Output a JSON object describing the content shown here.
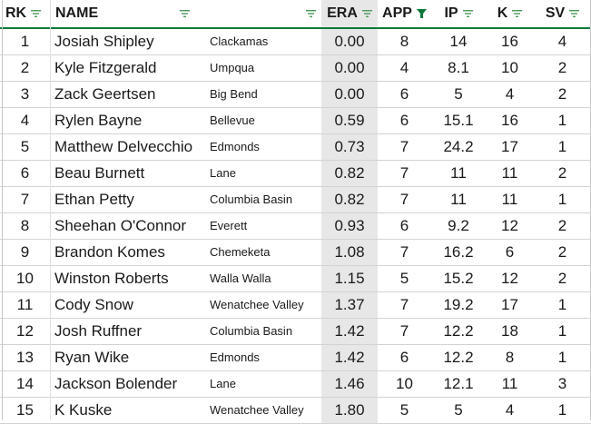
{
  "columns": [
    {
      "key": "rk",
      "label": "RK",
      "filter": "filter-icon"
    },
    {
      "key": "name",
      "label": "NAME",
      "filter": "filter-icon"
    },
    {
      "key": "team",
      "label": "",
      "filter": "filter-icon"
    },
    {
      "key": "era",
      "label": "ERA",
      "filter": "filter-icon"
    },
    {
      "key": "app",
      "label": "APP",
      "filter": "sort-funnel-icon"
    },
    {
      "key": "ip",
      "label": "IP",
      "filter": "filter-icon"
    },
    {
      "key": "k",
      "label": "K",
      "filter": "filter-icon"
    },
    {
      "key": "sv",
      "label": "SV",
      "filter": "filter-icon"
    }
  ],
  "colors": {
    "accent": "#0b7a3a",
    "icon": "#4a9a5a",
    "active_icon": "#0b7a3a",
    "era_bg": "#e7e7e7"
  },
  "rows": [
    {
      "rk": "1",
      "name": "Josiah Shipley",
      "team": "Clackamas",
      "era": "0.00",
      "app": "8",
      "ip": "14",
      "k": "16",
      "sv": "4"
    },
    {
      "rk": "2",
      "name": "Kyle Fitzgerald",
      "team": "Umpqua",
      "era": "0.00",
      "app": "4",
      "ip": "8.1",
      "k": "10",
      "sv": "2"
    },
    {
      "rk": "3",
      "name": "Zack Geertsen",
      "team": "Big Bend",
      "era": "0.00",
      "app": "6",
      "ip": "5",
      "k": "4",
      "sv": "2"
    },
    {
      "rk": "4",
      "name": "Rylen Bayne",
      "team": "Bellevue",
      "era": "0.59",
      "app": "6",
      "ip": "15.1",
      "k": "16",
      "sv": "1"
    },
    {
      "rk": "5",
      "name": "Matthew Delvecchio",
      "team": "Edmonds",
      "era": "0.73",
      "app": "7",
      "ip": "24.2",
      "k": "17",
      "sv": "1"
    },
    {
      "rk": "6",
      "name": "Beau Burnett",
      "team": "Lane",
      "era": "0.82",
      "app": "7",
      "ip": "11",
      "k": "11",
      "sv": "2"
    },
    {
      "rk": "7",
      "name": "Ethan Petty",
      "team": "Columbia Basin",
      "era": "0.82",
      "app": "7",
      "ip": "11",
      "k": "11",
      "sv": "1"
    },
    {
      "rk": "8",
      "name": "Sheehan O'Connor",
      "team": "Everett",
      "era": "0.93",
      "app": "6",
      "ip": "9.2",
      "k": "12",
      "sv": "2"
    },
    {
      "rk": "9",
      "name": "Brandon Komes",
      "team": "Chemeketa",
      "era": "1.08",
      "app": "7",
      "ip": "16.2",
      "k": "6",
      "sv": "2"
    },
    {
      "rk": "10",
      "name": "Winston Roberts",
      "team": "Walla Walla",
      "era": "1.15",
      "app": "5",
      "ip": "15.2",
      "k": "12",
      "sv": "2"
    },
    {
      "rk": "11",
      "name": "Cody Snow",
      "team": "Wenatchee Valley",
      "era": "1.37",
      "app": "7",
      "ip": "19.2",
      "k": "17",
      "sv": "1"
    },
    {
      "rk": "12",
      "name": "Josh Ruffner",
      "team": "Columbia Basin",
      "era": "1.42",
      "app": "7",
      "ip": "12.2",
      "k": "18",
      "sv": "1"
    },
    {
      "rk": "13",
      "name": "Ryan Wike",
      "team": "Edmonds",
      "era": "1.42",
      "app": "6",
      "ip": "12.2",
      "k": "8",
      "sv": "1"
    },
    {
      "rk": "14",
      "name": "Jackson Bolender",
      "team": "Lane",
      "era": "1.46",
      "app": "10",
      "ip": "12.1",
      "k": "11",
      "sv": "3"
    },
    {
      "rk": "15",
      "name": "K Kuske",
      "team": "Wenatchee Valley",
      "era": "1.80",
      "app": "5",
      "ip": "5",
      "k": "4",
      "sv": "1"
    }
  ]
}
